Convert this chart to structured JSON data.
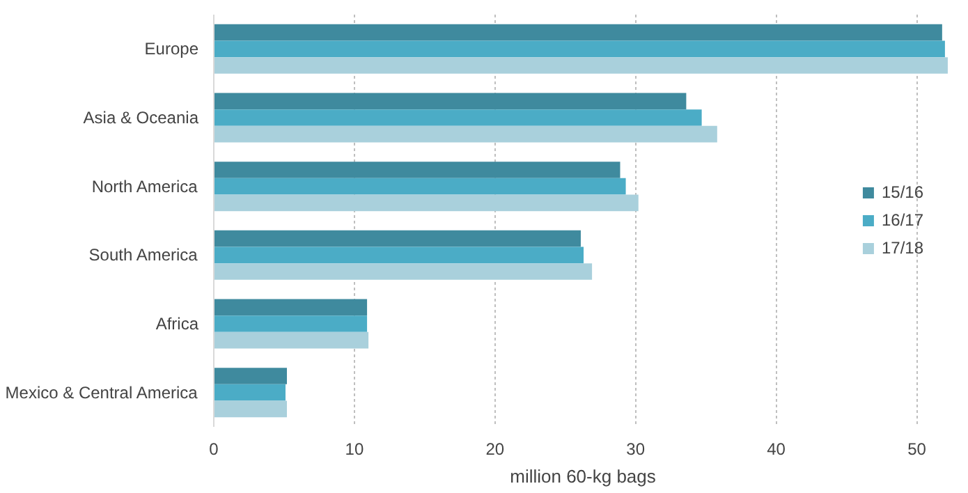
{
  "chart_data": {
    "type": "bar",
    "orientation": "horizontal",
    "xlabel": "million 60-kg bags",
    "categories": [
      "Europe",
      "Asia & Oceania",
      "North America",
      "South America",
      "Africa",
      "Mexico & Central America"
    ],
    "series": [
      {
        "name": "15/16",
        "color": "#3f8a9e",
        "values": [
          51.8,
          33.6,
          28.9,
          26.1,
          10.9,
          5.2
        ]
      },
      {
        "name": "16/17",
        "color": "#4bacc6",
        "values": [
          52.0,
          34.7,
          29.3,
          26.3,
          10.9,
          5.1
        ]
      },
      {
        "name": "17/18",
        "color": "#a9d0dc",
        "values": [
          52.2,
          35.8,
          30.2,
          26.9,
          11.0,
          5.2
        ]
      }
    ],
    "xlim": [
      0,
      52.5
    ],
    "xticks": [
      0,
      10,
      20,
      30,
      40,
      50
    ],
    "grid": "x",
    "legend": "right"
  }
}
